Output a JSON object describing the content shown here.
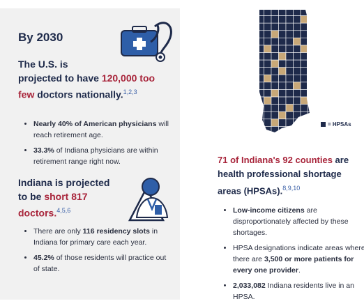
{
  "left": {
    "heading": "By 2030",
    "us": {
      "line1": "The U.S. is",
      "line2_pre": "projected to have ",
      "line2_red": "120,000 too",
      "line3_red": "few",
      "line3_post": " doctors nationally.",
      "refs": "1,2,3"
    },
    "bullets1": [
      {
        "bold": "Nearly 40% of American physicians",
        "rest": " will reach retirement age."
      },
      {
        "bold": "33.3%",
        "rest": " of Indiana physicians are within retirement range right now."
      }
    ],
    "indiana": {
      "line1": "Indiana is projected",
      "line2_pre": "to be ",
      "line2_red": "short 817",
      "line3_red": "doctors.",
      "refs": "4,5,6"
    },
    "bullets2": [
      {
        "pre": "There are only ",
        "bold": "116 residency slots",
        "rest": " in Indiana for primary care each year."
      },
      {
        "pre": "",
        "bold": "45.2%",
        "rest": " of those residents will practice out of state."
      }
    ]
  },
  "right": {
    "legend_label": "= HPSAs",
    "colors": {
      "navy": "#1e2a4a",
      "tan": "#c8a878",
      "red": "#a8243a"
    },
    "counties": {
      "red": "71 of Indiana's 92 counties",
      "rest": " are health professional shortage areas (HPSAs).",
      "refs": "8,9,10"
    },
    "bullets3": [
      {
        "pre": "",
        "bold": "Low-income citizens",
        "mid": " are disproportionately affected by these shortages.",
        "bold2": "",
        "post": ""
      },
      {
        "pre": "HPSA designations indicate areas where there are ",
        "bold": "3,500 or more patients for every one provider",
        "mid": ".",
        "bold2": "",
        "post": ""
      },
      {
        "pre": "",
        "bold": "2,033,082",
        "mid": " Indiana residents live in an HPSA.",
        "bold2": "",
        "post": ""
      }
    ]
  }
}
